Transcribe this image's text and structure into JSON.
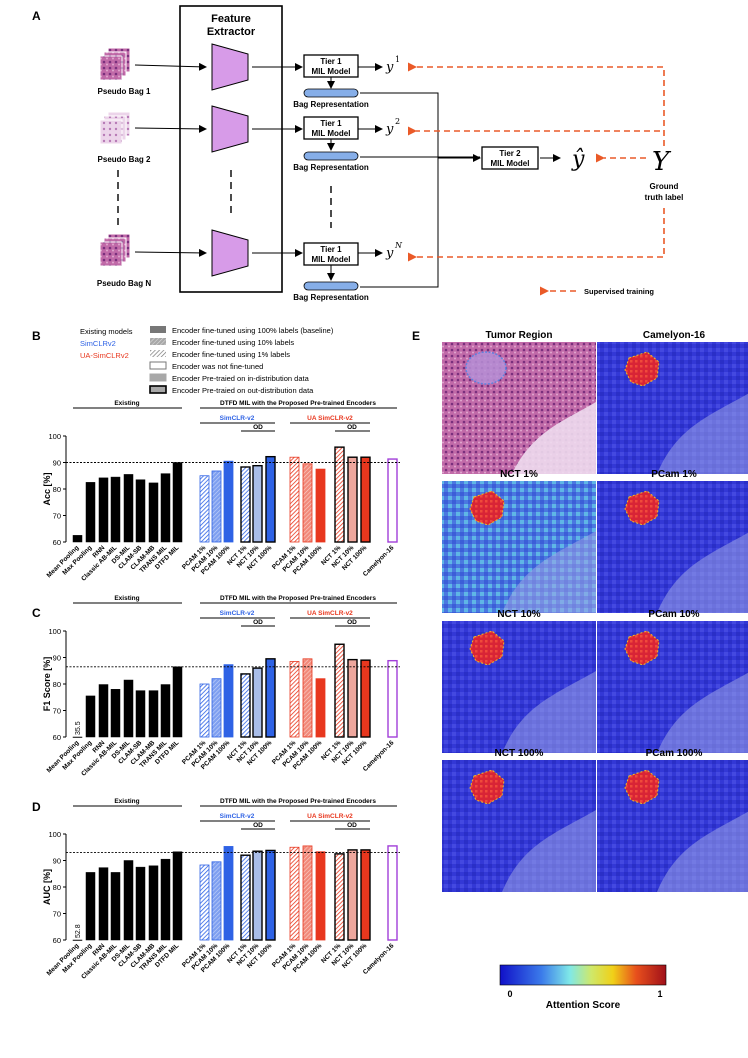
{
  "panels": {
    "A": "A",
    "B": "B",
    "C": "C",
    "D": "D",
    "E": "E"
  },
  "panel_a": {
    "feature_extractor": [
      "Feature",
      "Extractor"
    ],
    "pseudo_bags": [
      "Pseudo Bag 1",
      "Pseudo Bag 2",
      "Pseudo Bag N"
    ],
    "tier1_model": [
      "Tier 1",
      "MIL Model"
    ],
    "bag_representation": "Bag Representation",
    "tier2_model": [
      "Tier 2",
      "MIL Model"
    ],
    "y_labels": [
      "y",
      "1",
      "y",
      "2",
      "y",
      "N"
    ],
    "y_hat": "ŷ",
    "big_y": "Y",
    "ground_truth": [
      "Ground",
      "truth label"
    ],
    "supervised_training": "Supervised training",
    "colors": {
      "extractor": "#d79be8",
      "bag_rep": "#86aee8",
      "dashed": "#ea5a28"
    }
  },
  "legend": {
    "models_title": "Existing models",
    "simclr": "SimCLRv2",
    "ua_simclr": "UA-SimCLRv2",
    "items": [
      "Encoder fine-tuned using 100% labels (baseline)",
      "Encoder fine-tuned using 10% labels",
      "Encoder fine-tuned using 1% labels",
      "Encoder was not fine-tuned",
      "Encoder Pre-traied on in-distribution data",
      "Encoder Pre-traied on out-distribution data"
    ],
    "colors": {
      "simclr": "#2e62e5",
      "ua_simclr": "#e8371e",
      "existing": "#000000",
      "camelyon": "#a13fd8"
    }
  },
  "chart_data": [
    {
      "type": "bar",
      "panel": "B",
      "ylabel": "Acc [%]",
      "ylim": [
        60,
        100
      ],
      "yticks": [
        60,
        70,
        80,
        90,
        100
      ],
      "reference_line": 90,
      "group_labels": {
        "existing": "Existing",
        "dtfd": "DTFD MIL with the Proposed Pre-trained Encoders",
        "simclr": "SimCLR-v2",
        "ua_simclr": "UA SimCLR-v2",
        "od": "OD"
      },
      "categories": [
        "Mean Pooling",
        "Max Pooling",
        "RNN",
        "Classic AB-MIL",
        "DS-MIL",
        "CLAM-SB",
        "CLAM-MB",
        "TRANS MIL",
        "DTFD MIL",
        "PCAM 1%",
        "PCAM 10%",
        "PCAM 100%",
        "NCT 1%",
        "NCT 10%",
        "NCT 100%",
        "PCAM 1%",
        "PCAM 10%",
        "PCAM 100%",
        "NCT 1%",
        "NCT 10%",
        "NCT 100%",
        "Camelyon-16"
      ],
      "values": [
        62.5,
        82.5,
        84.2,
        84.5,
        85.5,
        83.5,
        82.3,
        85.8,
        90.0,
        85.0,
        86.8,
        90.5,
        88.3,
        88.8,
        92.2,
        92.0,
        89.5,
        87.5,
        95.8,
        92.0,
        92.0,
        91.3
      ],
      "value_labels": [
        "",
        "",
        "",
        "",
        "",
        "",
        "",
        "",
        "",
        "",
        "",
        "",
        "",
        "",
        "",
        "",
        "",
        "",
        "",
        "",
        "",
        ""
      ]
    },
    {
      "type": "bar",
      "panel": "C",
      "ylabel": "F1 Score [%]",
      "ylim": [
        60,
        100
      ],
      "yticks": [
        60,
        70,
        80,
        90,
        100
      ],
      "reference_line": 86.5,
      "group_labels": {
        "existing": "Existing",
        "dtfd": "DTFD MIL with the Proposed Pre-trained Encoders",
        "simclr": "SimCLR-v2",
        "ua_simclr": "UA SimCLR-v2",
        "od": "OD"
      },
      "categories": [
        "Mean Pooling",
        "Max Pooling",
        "RNN",
        "Classic AB-MIL",
        "DS-MIL",
        "CLAM-SB",
        "CLAM-MB",
        "TRANS MIL",
        "DTFD MIL",
        "PCAM 1%",
        "PCAM 10%",
        "PCAM 100%",
        "NCT 1%",
        "NCT 10%",
        "NCT 100%",
        "PCAM 1%",
        "PCAM 10%",
        "PCAM 100%",
        "NCT 1%",
        "NCT 10%",
        "NCT 100%",
        "Camelyon-16"
      ],
      "values": [
        35.5,
        75.5,
        79.8,
        78.0,
        81.5,
        77.5,
        77.5,
        79.8,
        86.5,
        80.0,
        82.0,
        87.3,
        83.8,
        86.0,
        89.5,
        88.5,
        89.5,
        82.0,
        95.0,
        89.2,
        89.0,
        88.8
      ],
      "value_labels": [
        "35.5",
        "",
        "",
        "",
        "",
        "",
        "",
        "",
        "",
        "",
        "",
        "",
        "",
        "",
        "",
        "",
        "",
        "",
        "",
        "",
        "",
        ""
      ]
    },
    {
      "type": "bar",
      "panel": "D",
      "ylabel": "AUC [%]",
      "ylim": [
        60,
        100
      ],
      "yticks": [
        60,
        70,
        80,
        90,
        100
      ],
      "reference_line": 93,
      "group_labels": {
        "existing": "Existing",
        "dtfd": "DTFD MIL with the Proposed Pre-trained Encoders",
        "simclr": "SimCLR-v2",
        "ua_simclr": "UA SimCLR-v2",
        "od": "OD"
      },
      "categories": [
        "Mean Pooling",
        "Max Pooling",
        "RNN",
        "Classic AB-MIL",
        "DS-MIL",
        "CLAM-SB",
        "CLAM-MB",
        "TRANS MIL",
        "DTFD MIL",
        "PCAM 1%",
        "PCAM 10%",
        "PCAM 100%",
        "NCT 1%",
        "NCT 10%",
        "NCT 100%",
        "PCAM 1%",
        "PCAM 10%",
        "PCAM 100%",
        "NCT 1%",
        "NCT 10%",
        "NCT 100%",
        "Camelyon-16"
      ],
      "values": [
        52.8,
        85.5,
        87.3,
        85.5,
        90.0,
        87.5,
        88.0,
        90.5,
        93.3,
        88.3,
        89.5,
        95.3,
        92.0,
        93.5,
        93.8,
        95.0,
        95.5,
        93.3,
        92.5,
        94.0,
        94.0,
        95.5
      ],
      "value_labels": [
        "52.8",
        "",
        "",
        "",
        "",
        "",
        "",
        "",
        "",
        "",
        "",
        "",
        "",
        "",
        "",
        "",
        "",
        "",
        "",
        "",
        "",
        ""
      ]
    }
  ],
  "heatmaps": {
    "titles": [
      "Tumor Region",
      "Camelyon-16",
      "NCT 1%",
      "PCam 1%",
      "NCT 10%",
      "PCam 10%",
      "NCT 100%",
      "PCam 100%"
    ],
    "colorbar": {
      "min": "0",
      "max": "1",
      "label": "Attention Score"
    }
  }
}
